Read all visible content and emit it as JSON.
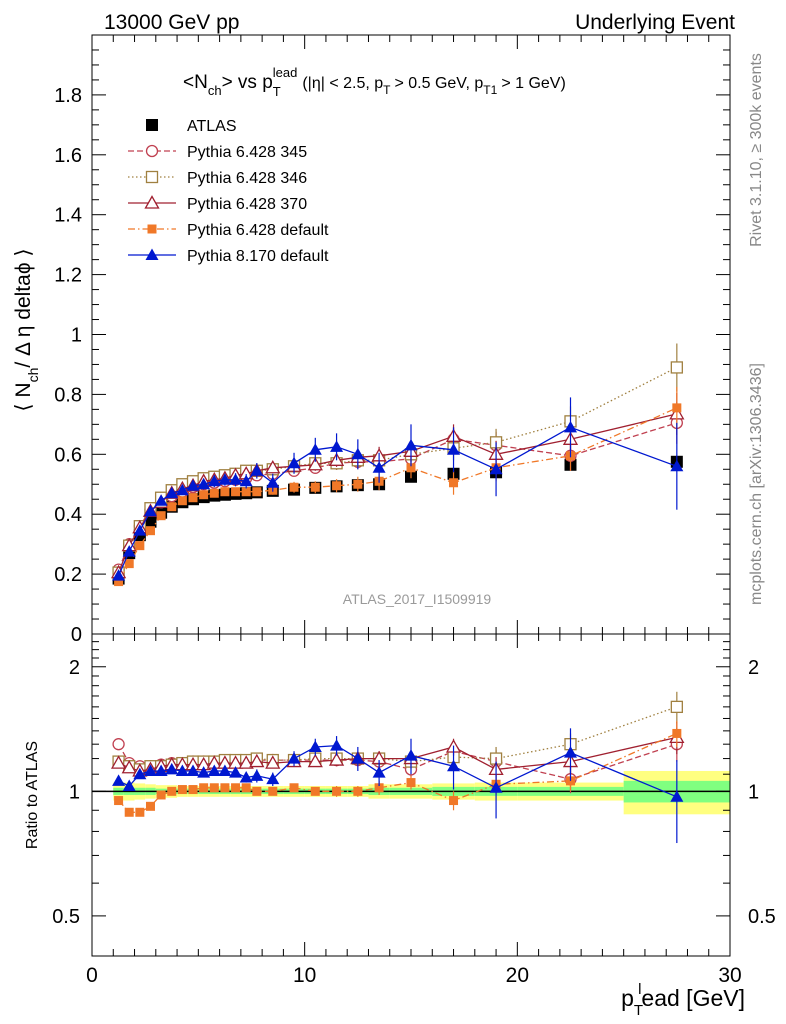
{
  "header": {
    "left": "13000 GeV pp",
    "right": "Underlying Event"
  },
  "side_labels": {
    "rivet": "Rivet 3.1.10, ≥ 300k events",
    "mcplots": "mcplots.cern.ch [arXiv:1306.3436]"
  },
  "watermark": "ATLAS_2017_I1509919",
  "chart_data": [
    {
      "type": "scatter",
      "panel": "main",
      "title": {
        "main": "<N",
        "main_sub": "ch",
        "vs": "> vs p",
        "vs_sub": "T",
        "vs_sup": "lead",
        "cut_a": "(|η| < 2.5, p",
        "cut_a_sub": "T",
        "cut_b": "> 0.5 GeV, p",
        "cut_b_sub": "T1",
        "cut_c": "> 1 GeV)"
      },
      "ylabel": {
        "a": "⟨ N",
        "a_sub": "ch",
        "b": "/ Δ η deltaϕ ⟩"
      },
      "xlim": [
        0,
        30
      ],
      "ylim": [
        0,
        2.0
      ],
      "y_ticks": [
        0,
        0.2,
        0.4,
        0.6,
        0.8,
        1,
        1.2,
        1.4,
        1.6,
        1.8
      ],
      "y_tick_labels": [
        "0",
        "0.2",
        "0.4",
        "0.6",
        "0.8",
        "1",
        "1.2",
        "1.4",
        "1.6",
        "1.8"
      ],
      "legend_position": "top-left",
      "x": [
        1.25,
        1.75,
        2.25,
        2.75,
        3.25,
        3.75,
        4.25,
        4.75,
        5.25,
        5.75,
        6.25,
        6.75,
        7.25,
        7.75,
        8.5,
        9.5,
        10.5,
        11.5,
        12.5,
        13.5,
        15,
        17,
        19,
        22.5,
        27.5
      ],
      "series": [
        {
          "name": "ATLAS",
          "color": "#000000",
          "marker": "filled-square",
          "line": "none",
          "values": [
            0.185,
            0.27,
            0.33,
            0.375,
            0.405,
            0.425,
            0.44,
            0.45,
            0.457,
            0.462,
            0.465,
            0.468,
            0.47,
            0.473,
            0.478,
            0.482,
            0.488,
            0.493,
            0.497,
            0.5,
            0.525,
            0.535,
            0.54,
            0.565,
            0.575
          ],
          "err": [
            0.005,
            0.005,
            0.005,
            0.005,
            0.005,
            0.005,
            0.005,
            0.005,
            0.005,
            0.005,
            0.005,
            0.005,
            0.005,
            0.005,
            0.005,
            0.005,
            0.005,
            0.005,
            0.005,
            0.005,
            0.01,
            0.01,
            0.012,
            0.015,
            0.02
          ]
        },
        {
          "name": "Pythia 6.428 345",
          "color": "#c04050",
          "marker": "open-circle",
          "line": "dashed",
          "values": [
            0.215,
            0.3,
            0.36,
            0.415,
            0.44,
            0.46,
            0.475,
            0.49,
            0.5,
            0.505,
            0.51,
            0.515,
            0.52,
            0.53,
            0.535,
            0.545,
            0.555,
            0.57,
            0.575,
            0.575,
            0.585,
            0.65,
            0.63,
            0.595,
            0.705
          ],
          "err": [
            0.005,
            0.005,
            0.005,
            0.006,
            0.006,
            0.007,
            0.008,
            0.008,
            0.009,
            0.01,
            0.01,
            0.011,
            0.012,
            0.013,
            0.015,
            0.018,
            0.02,
            0.022,
            0.025,
            0.03,
            0.035,
            0.04,
            0.045,
            0.05,
            0.07
          ]
        },
        {
          "name": "Pythia 6.428 346",
          "color": "#a08040",
          "marker": "open-square",
          "line": "dotted",
          "values": [
            0.205,
            0.295,
            0.36,
            0.42,
            0.455,
            0.48,
            0.5,
            0.51,
            0.52,
            0.525,
            0.53,
            0.535,
            0.545,
            0.545,
            0.55,
            0.56,
            0.57,
            0.57,
            0.58,
            0.58,
            0.6,
            0.62,
            0.64,
            0.71,
            0.89
          ],
          "err": [
            0.005,
            0.005,
            0.005,
            0.006,
            0.006,
            0.007,
            0.008,
            0.008,
            0.009,
            0.01,
            0.01,
            0.011,
            0.012,
            0.013,
            0.015,
            0.018,
            0.02,
            0.022,
            0.025,
            0.03,
            0.035,
            0.04,
            0.045,
            0.05,
            0.08
          ]
        },
        {
          "name": "Pythia 6.428 370",
          "color": "#a02030",
          "marker": "open-triangle",
          "line": "solid",
          "values": [
            0.205,
            0.295,
            0.355,
            0.41,
            0.44,
            0.47,
            0.485,
            0.495,
            0.51,
            0.515,
            0.52,
            0.53,
            0.535,
            0.545,
            0.555,
            0.56,
            0.565,
            0.58,
            0.59,
            0.595,
            0.61,
            0.66,
            0.6,
            0.65,
            0.735
          ],
          "err": [
            0.005,
            0.005,
            0.005,
            0.006,
            0.006,
            0.007,
            0.008,
            0.008,
            0.009,
            0.01,
            0.01,
            0.011,
            0.012,
            0.013,
            0.015,
            0.018,
            0.02,
            0.022,
            0.025,
            0.03,
            0.035,
            0.04,
            0.045,
            0.05,
            0.07
          ]
        },
        {
          "name": "Pythia 6.428 default",
          "color": "#f07828",
          "marker": "filled-square-small",
          "line": "dashdot",
          "values": [
            0.175,
            0.235,
            0.295,
            0.345,
            0.395,
            0.425,
            0.445,
            0.455,
            0.465,
            0.47,
            0.475,
            0.475,
            0.475,
            0.475,
            0.48,
            0.49,
            0.49,
            0.495,
            0.5,
            0.51,
            0.555,
            0.505,
            0.555,
            0.595,
            0.755
          ],
          "err": [
            0.005,
            0.005,
            0.005,
            0.006,
            0.006,
            0.007,
            0.008,
            0.008,
            0.009,
            0.01,
            0.01,
            0.011,
            0.012,
            0.013,
            0.015,
            0.018,
            0.02,
            0.022,
            0.025,
            0.03,
            0.035,
            0.04,
            0.045,
            0.05,
            0.07
          ]
        },
        {
          "name": "Pythia 8.170 default",
          "color": "#0018d0",
          "marker": "filled-triangle",
          "line": "solid",
          "values": [
            0.195,
            0.275,
            0.345,
            0.41,
            0.445,
            0.47,
            0.48,
            0.495,
            0.5,
            0.51,
            0.515,
            0.515,
            0.51,
            0.545,
            0.505,
            0.57,
            0.615,
            0.625,
            0.6,
            0.555,
            0.63,
            0.615,
            0.55,
            0.69,
            0.56
          ],
          "err": [
            0.01,
            0.01,
            0.01,
            0.012,
            0.012,
            0.014,
            0.015,
            0.016,
            0.018,
            0.02,
            0.02,
            0.022,
            0.024,
            0.026,
            0.03,
            0.035,
            0.04,
            0.045,
            0.05,
            0.05,
            0.07,
            0.075,
            0.09,
            0.1,
            0.145
          ]
        }
      ]
    },
    {
      "type": "scatter",
      "panel": "ratio",
      "ylabel": "Ratio to ATLAS",
      "xlabel": {
        "a": "p",
        "a_sub": "T",
        "a_sup": "l",
        "b": "ead [GeV]"
      },
      "xlim": [
        0,
        30
      ],
      "ylim": [
        0.4,
        2.4
      ],
      "y_scale": "log",
      "y_ticks": [
        0.5,
        1,
        2
      ],
      "y_tick_labels": [
        "0.5",
        "1",
        "2"
      ],
      "x_ticks": [
        0,
        10,
        20,
        30
      ],
      "x_tick_labels": [
        "0",
        "10",
        "20",
        "30"
      ],
      "reference": 1,
      "uncertainty_bands": {
        "colors": {
          "outer": "#ffff80",
          "inner": "#80ff80"
        },
        "bins": [
          {
            "x0": 1.0,
            "x1": 1.5,
            "outer": 0.05,
            "inner": 0.02
          },
          {
            "x0": 1.5,
            "x1": 2.0,
            "outer": 0.05,
            "inner": 0.02
          },
          {
            "x0": 2.0,
            "x1": 2.5,
            "outer": 0.045,
            "inner": 0.02
          },
          {
            "x0": 2.5,
            "x1": 3.0,
            "outer": 0.04,
            "inner": 0.02
          },
          {
            "x0": 3.0,
            "x1": 3.5,
            "outer": 0.035,
            "inner": 0.015
          },
          {
            "x0": 3.5,
            "x1": 4.0,
            "outer": 0.035,
            "inner": 0.015
          },
          {
            "x0": 4.0,
            "x1": 4.5,
            "outer": 0.03,
            "inner": 0.015
          },
          {
            "x0": 4.5,
            "x1": 5.0,
            "outer": 0.03,
            "inner": 0.015
          },
          {
            "x0": 5.0,
            "x1": 5.5,
            "outer": 0.03,
            "inner": 0.015
          },
          {
            "x0": 5.5,
            "x1": 6.0,
            "outer": 0.03,
            "inner": 0.015
          },
          {
            "x0": 6.0,
            "x1": 6.5,
            "outer": 0.03,
            "inner": 0.015
          },
          {
            "x0": 6.5,
            "x1": 7.0,
            "outer": 0.03,
            "inner": 0.015
          },
          {
            "x0": 7.0,
            "x1": 7.5,
            "outer": 0.03,
            "inner": 0.015
          },
          {
            "x0": 7.5,
            "x1": 8.0,
            "outer": 0.03,
            "inner": 0.015
          },
          {
            "x0": 8.0,
            "x1": 9.0,
            "outer": 0.03,
            "inner": 0.015
          },
          {
            "x0": 9.0,
            "x1": 10.0,
            "outer": 0.03,
            "inner": 0.015
          },
          {
            "x0": 10.0,
            "x1": 11.0,
            "outer": 0.03,
            "inner": 0.015
          },
          {
            "x0": 11.0,
            "x1": 12.0,
            "outer": 0.03,
            "inner": 0.015
          },
          {
            "x0": 12.0,
            "x1": 13.0,
            "outer": 0.03,
            "inner": 0.015
          },
          {
            "x0": 13.0,
            "x1": 14.0,
            "outer": 0.04,
            "inner": 0.02
          },
          {
            "x0": 14.0,
            "x1": 16.0,
            "outer": 0.04,
            "inner": 0.02
          },
          {
            "x0": 16.0,
            "x1": 18.0,
            "outer": 0.045,
            "inner": 0.025
          },
          {
            "x0": 18.0,
            "x1": 20.0,
            "outer": 0.05,
            "inner": 0.025
          },
          {
            "x0": 20.0,
            "x1": 25.0,
            "outer": 0.05,
            "inner": 0.025
          },
          {
            "x0": 25.0,
            "x1": 30.0,
            "outer": 0.12,
            "inner": 0.06
          }
        ]
      },
      "x": [
        1.25,
        1.75,
        2.25,
        2.75,
        3.25,
        3.75,
        4.25,
        4.75,
        5.25,
        5.75,
        6.25,
        6.75,
        7.25,
        7.75,
        8.5,
        9.5,
        10.5,
        11.5,
        12.5,
        13.5,
        15,
        17,
        19,
        22.5,
        27.5
      ],
      "series": [
        {
          "name": "Pythia 6.428 345",
          "color": "#c04050",
          "marker": "open-circle",
          "line": "dashed",
          "values": [
            1.3,
            1.17,
            1.15,
            1.15,
            1.16,
            1.17,
            1.17,
            1.18,
            1.18,
            1.18,
            1.18,
            1.18,
            1.18,
            1.19,
            1.19,
            1.19,
            1.19,
            1.19,
            1.19,
            1.18,
            1.13,
            1.25,
            1.18,
            1.07,
            1.3
          ],
          "err": [
            0.02,
            0.02,
            0.02,
            0.02,
            0.02,
            0.02,
            0.02,
            0.02,
            0.02,
            0.02,
            0.02,
            0.02,
            0.02,
            0.03,
            0.03,
            0.03,
            0.03,
            0.04,
            0.04,
            0.05,
            0.05,
            0.06,
            0.08,
            0.08,
            0.12
          ]
        },
        {
          "name": "Pythia 6.428 346",
          "color": "#a08040",
          "marker": "open-square",
          "line": "dotted",
          "values": [
            1.18,
            1.15,
            1.13,
            1.15,
            1.15,
            1.16,
            1.17,
            1.18,
            1.18,
            1.18,
            1.19,
            1.19,
            1.19,
            1.2,
            1.19,
            1.19,
            1.2,
            1.2,
            1.2,
            1.2,
            1.18,
            1.21,
            1.2,
            1.3,
            1.6
          ],
          "err": [
            0.02,
            0.02,
            0.02,
            0.02,
            0.02,
            0.02,
            0.02,
            0.02,
            0.02,
            0.02,
            0.02,
            0.02,
            0.02,
            0.03,
            0.03,
            0.03,
            0.03,
            0.04,
            0.04,
            0.05,
            0.05,
            0.06,
            0.08,
            0.08,
            0.14
          ]
        },
        {
          "name": "Pythia 6.428 370",
          "color": "#a02030",
          "marker": "open-triangle",
          "line": "solid",
          "values": [
            1.17,
            1.14,
            1.12,
            1.13,
            1.15,
            1.16,
            1.16,
            1.16,
            1.16,
            1.17,
            1.17,
            1.17,
            1.17,
            1.18,
            1.17,
            1.18,
            1.18,
            1.19,
            1.2,
            1.2,
            1.2,
            1.28,
            1.13,
            1.18,
            1.35
          ],
          "err": [
            0.02,
            0.02,
            0.02,
            0.02,
            0.02,
            0.02,
            0.02,
            0.02,
            0.02,
            0.02,
            0.02,
            0.02,
            0.02,
            0.03,
            0.03,
            0.03,
            0.03,
            0.04,
            0.04,
            0.05,
            0.05,
            0.06,
            0.08,
            0.08,
            0.12
          ]
        },
        {
          "name": "Pythia 6.428 default",
          "color": "#f07828",
          "marker": "filled-square-small",
          "line": "dashdot",
          "values": [
            0.95,
            0.89,
            0.89,
            0.92,
            0.98,
            1.0,
            1.01,
            1.01,
            1.02,
            1.02,
            1.02,
            1.02,
            1.02,
            1.0,
            1.0,
            1.02,
            1.0,
            1.0,
            1.0,
            1.02,
            1.05,
            0.95,
            1.04,
            1.06,
            1.38
          ],
          "err": [
            0.015,
            0.015,
            0.015,
            0.015,
            0.015,
            0.015,
            0.015,
            0.015,
            0.015,
            0.015,
            0.015,
            0.015,
            0.015,
            0.02,
            0.02,
            0.02,
            0.02,
            0.03,
            0.03,
            0.04,
            0.04,
            0.05,
            0.06,
            0.06,
            0.1
          ]
        },
        {
          "name": "Pythia 8.170 default",
          "color": "#0018d0",
          "marker": "filled-triangle",
          "line": "solid",
          "values": [
            1.06,
            1.03,
            1.1,
            1.12,
            1.12,
            1.13,
            1.12,
            1.12,
            1.11,
            1.12,
            1.12,
            1.11,
            1.08,
            1.09,
            1.07,
            1.2,
            1.28,
            1.29,
            1.2,
            1.11,
            1.22,
            1.15,
            1.02,
            1.24,
            0.97
          ],
          "err": [
            0.02,
            0.02,
            0.02,
            0.02,
            0.02,
            0.02,
            0.02,
            0.02,
            0.02,
            0.03,
            0.03,
            0.03,
            0.03,
            0.04,
            0.04,
            0.05,
            0.06,
            0.07,
            0.08,
            0.08,
            0.12,
            0.14,
            0.16,
            0.18,
            0.22
          ]
        }
      ]
    }
  ]
}
